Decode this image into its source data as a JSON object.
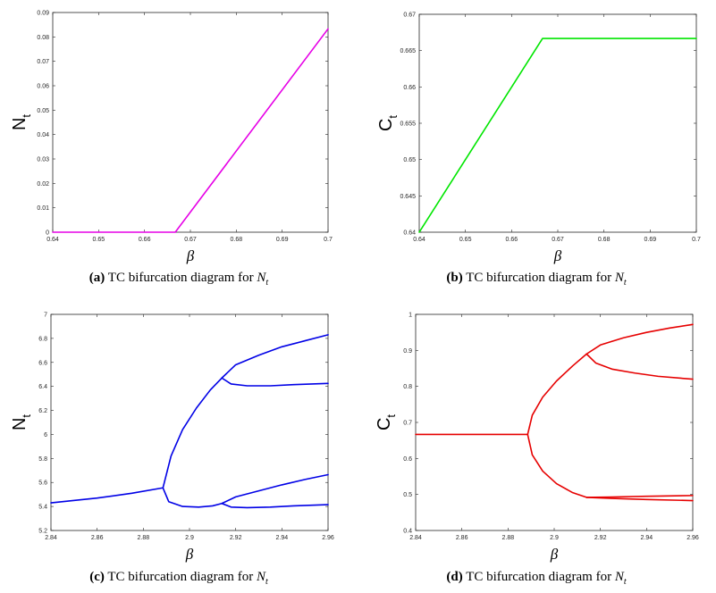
{
  "chart_data": [
    {
      "id": "a",
      "type": "line",
      "ylabel": {
        "main": "N",
        "sub": "t"
      },
      "xlabel": "β",
      "xlim": [
        0.64,
        0.7
      ],
      "ylim": [
        0,
        0.09
      ],
      "xticks": [
        "0.64",
        "0.65",
        "0.66",
        "0.67",
        "0.68",
        "0.69",
        "0.7"
      ],
      "yticks": [
        "0",
        "0.01",
        "0.02",
        "0.03",
        "0.04",
        "0.05",
        "0.06",
        "0.07",
        "0.08",
        "0.09"
      ],
      "color": "#e600e6",
      "grid": false,
      "series": [
        {
          "points": [
            [
              0.64,
              0.0
            ],
            [
              0.6667,
              0.0
            ],
            [
              0.7,
              0.0833
            ]
          ]
        }
      ],
      "caption": {
        "tag": "(a)",
        "text": " TC bifurcation diagram for ",
        "var": "N",
        "sub": "t"
      }
    },
    {
      "id": "b",
      "type": "line",
      "ylabel": {
        "main": "C",
        "sub": "t"
      },
      "xlabel": "β",
      "xlim": [
        0.64,
        0.7
      ],
      "ylim": [
        0.64,
        0.67
      ],
      "xticks": [
        "0.64",
        "0.65",
        "0.66",
        "0.67",
        "0.68",
        "0.69",
        "0.7"
      ],
      "yticks": [
        "0.64",
        "0.645",
        "0.65",
        "0.655",
        "0.66",
        "0.665",
        "0.67"
      ],
      "color": "#00e600",
      "grid": false,
      "series": [
        {
          "points": [
            [
              0.64,
              0.64
            ],
            [
              0.6667,
              0.66667
            ],
            [
              0.7,
              0.66667
            ]
          ]
        }
      ],
      "caption": {
        "tag": "(b)",
        "text": " TC bifurcation diagram for ",
        "var": "N",
        "sub": "t"
      }
    },
    {
      "id": "c",
      "type": "line",
      "ylabel": {
        "main": "N",
        "sub": "t"
      },
      "xlabel": "β",
      "xlim": [
        2.84,
        2.96
      ],
      "ylim": [
        5.2,
        7.0
      ],
      "xticks": [
        "2.84",
        "2.86",
        "2.88",
        "2.9",
        "2.92",
        "2.94",
        "2.96"
      ],
      "yticks": [
        "5.2",
        "5.4",
        "5.6",
        "5.8",
        "6",
        "6.2",
        "6.4",
        "6.6",
        "6.8",
        "7"
      ],
      "color": "#0000e6",
      "grid": false,
      "series": [
        {
          "points": [
            [
              2.84,
              5.43
            ],
            [
              2.86,
              5.47
            ],
            [
              2.875,
              5.51
            ],
            [
              2.8885,
              5.555
            ]
          ]
        },
        {
          "points": [
            [
              2.8885,
              5.555
            ],
            [
              2.892,
              5.82
            ],
            [
              2.897,
              6.04
            ],
            [
              2.903,
              6.22
            ],
            [
              2.909,
              6.37
            ],
            [
              2.914,
              6.47
            ]
          ]
        },
        {
          "points": [
            [
              2.8885,
              5.555
            ],
            [
              2.891,
              5.44
            ],
            [
              2.897,
              5.4
            ],
            [
              2.904,
              5.395
            ],
            [
              2.91,
              5.405
            ],
            [
              2.914,
              5.425
            ]
          ]
        },
        {
          "points": [
            [
              2.914,
              6.47
            ],
            [
              2.92,
              6.58
            ],
            [
              2.93,
              6.66
            ],
            [
              2.94,
              6.73
            ],
            [
              2.95,
              6.78
            ],
            [
              2.96,
              6.83
            ]
          ]
        },
        {
          "points": [
            [
              2.914,
              6.47
            ],
            [
              2.918,
              6.42
            ],
            [
              2.925,
              6.405
            ],
            [
              2.935,
              6.405
            ],
            [
              2.945,
              6.415
            ],
            [
              2.96,
              6.425
            ]
          ]
        },
        {
          "points": [
            [
              2.914,
              5.425
            ],
            [
              2.92,
              5.48
            ],
            [
              2.93,
              5.53
            ],
            [
              2.94,
              5.58
            ],
            [
              2.95,
              5.625
            ],
            [
              2.96,
              5.665
            ]
          ]
        },
        {
          "points": [
            [
              2.914,
              5.425
            ],
            [
              2.918,
              5.395
            ],
            [
              2.925,
              5.39
            ],
            [
              2.935,
              5.395
            ],
            [
              2.945,
              5.405
            ],
            [
              2.96,
              5.415
            ]
          ]
        }
      ],
      "caption": {
        "tag": "(c)",
        "text": " TC bifurcation diagram for ",
        "var": "N",
        "sub": "t"
      }
    },
    {
      "id": "d",
      "type": "line",
      "ylabel": {
        "main": "C",
        "sub": "t"
      },
      "xlabel": "β",
      "xlim": [
        2.84,
        2.96
      ],
      "ylim": [
        0.4,
        1.0
      ],
      "xticks": [
        "2.84",
        "2.86",
        "2.88",
        "2.9",
        "2.92",
        "2.94",
        "2.96"
      ],
      "yticks": [
        "0.4",
        "0.5",
        "0.6",
        "0.7",
        "0.8",
        "0.9",
        "1"
      ],
      "color": "#e60000",
      "grid": false,
      "series": [
        {
          "points": [
            [
              2.84,
              0.6667
            ],
            [
              2.8885,
              0.6667
            ]
          ]
        },
        {
          "points": [
            [
              2.8885,
              0.6667
            ],
            [
              2.8905,
              0.72
            ],
            [
              2.895,
              0.77
            ],
            [
              2.901,
              0.815
            ],
            [
              2.908,
              0.857
            ],
            [
              2.914,
              0.89
            ]
          ]
        },
        {
          "points": [
            [
              2.8885,
              0.6667
            ],
            [
              2.8905,
              0.61
            ],
            [
              2.895,
              0.565
            ],
            [
              2.901,
              0.53
            ],
            [
              2.908,
              0.505
            ],
            [
              2.914,
              0.492
            ]
          ]
        },
        {
          "points": [
            [
              2.914,
              0.89
            ],
            [
              2.92,
              0.915
            ],
            [
              2.93,
              0.935
            ],
            [
              2.94,
              0.95
            ],
            [
              2.95,
              0.962
            ],
            [
              2.96,
              0.972
            ]
          ]
        },
        {
          "points": [
            [
              2.914,
              0.89
            ],
            [
              2.918,
              0.865
            ],
            [
              2.925,
              0.848
            ],
            [
              2.935,
              0.837
            ],
            [
              2.945,
              0.828
            ],
            [
              2.96,
              0.82
            ]
          ]
        },
        {
          "points": [
            [
              2.914,
              0.492
            ],
            [
              2.925,
              0.493
            ],
            [
              2.94,
              0.495
            ],
            [
              2.96,
              0.497
            ]
          ]
        },
        {
          "points": [
            [
              2.914,
              0.492
            ],
            [
              2.925,
              0.489
            ],
            [
              2.94,
              0.486
            ],
            [
              2.96,
              0.483
            ]
          ]
        }
      ],
      "caption": {
        "tag": "(d)",
        "text": " TC bifurcation diagram for ",
        "var": "N",
        "sub": "t"
      }
    }
  ]
}
